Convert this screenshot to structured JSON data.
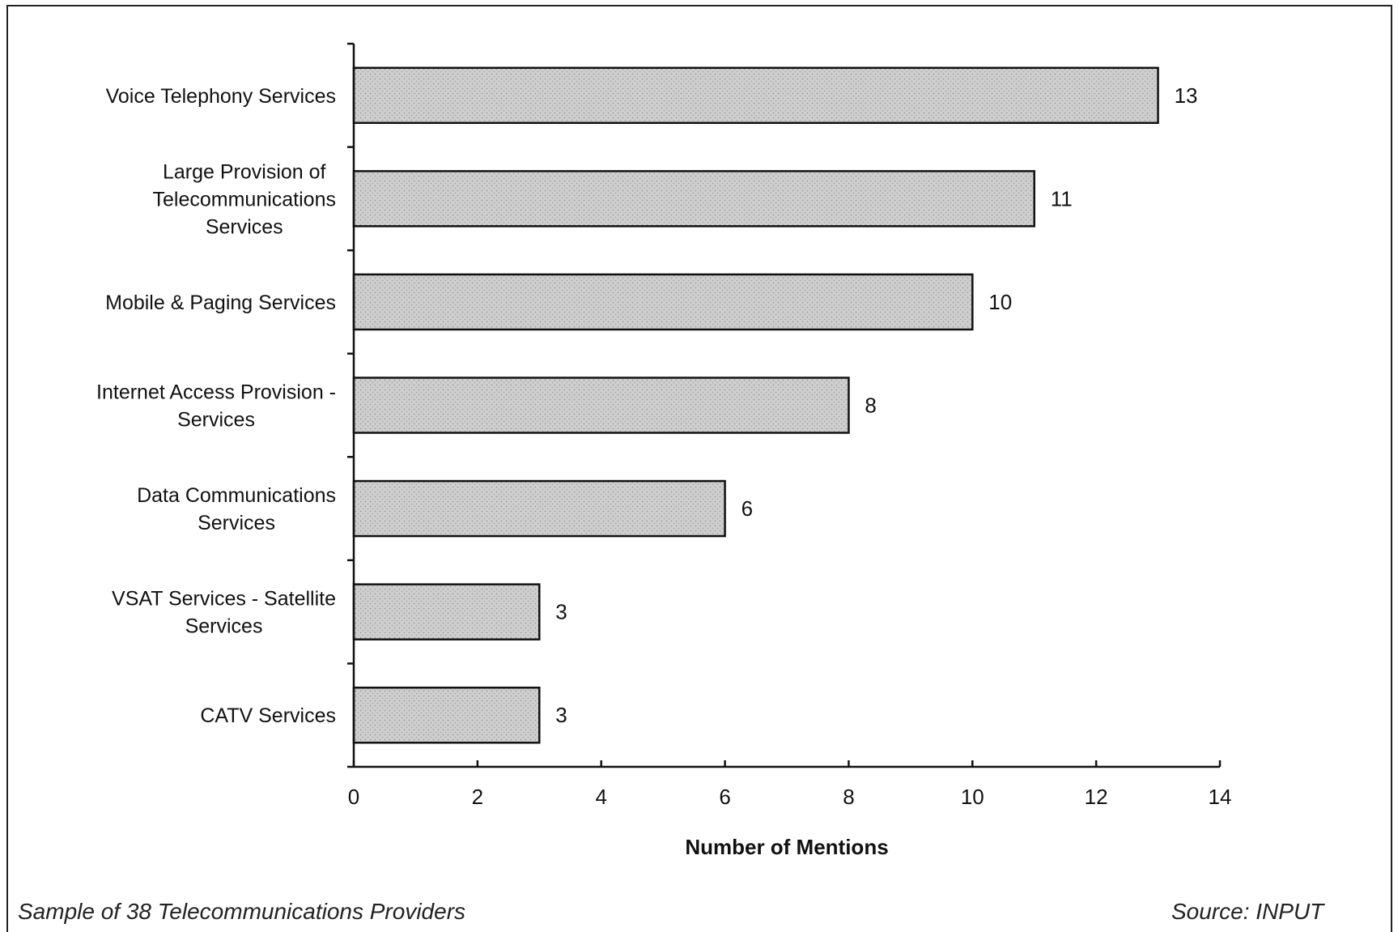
{
  "chart_data": {
    "type": "bar",
    "orientation": "horizontal",
    "categories": [
      "Voice Telephony Services",
      "Large Provision of Telecommunications Services",
      "Mobile & Paging Services",
      "Internet Access Provision - Services",
      "Data Communications Services",
      "VSAT Services - Satellite Services",
      "CATV Services"
    ],
    "category_lines": [
      [
        "Voice Telephony Services"
      ],
      [
        "Large Provision of",
        "Telecommunications",
        "Services"
      ],
      [
        "Mobile & Paging Services"
      ],
      [
        "Internet Access Provision -",
        "Services"
      ],
      [
        "Data Communications",
        "Services"
      ],
      [
        "VSAT Services - Satellite",
        "Services"
      ],
      [
        "CATV Services"
      ]
    ],
    "values": [
      13,
      11,
      10,
      8,
      6,
      3,
      3
    ],
    "xlabel": "Number of Mentions",
    "ylabel": "",
    "xlim": [
      0,
      14
    ],
    "xticks": [
      0,
      2,
      4,
      6,
      8,
      10,
      12,
      14
    ],
    "grid": false,
    "data_labels": true,
    "bar_color": "#c8c8c8",
    "bar_outline": "#111111"
  },
  "footer": {
    "note": "Sample of 38 Telecommunications Providers",
    "source": "Source: INPUT"
  }
}
